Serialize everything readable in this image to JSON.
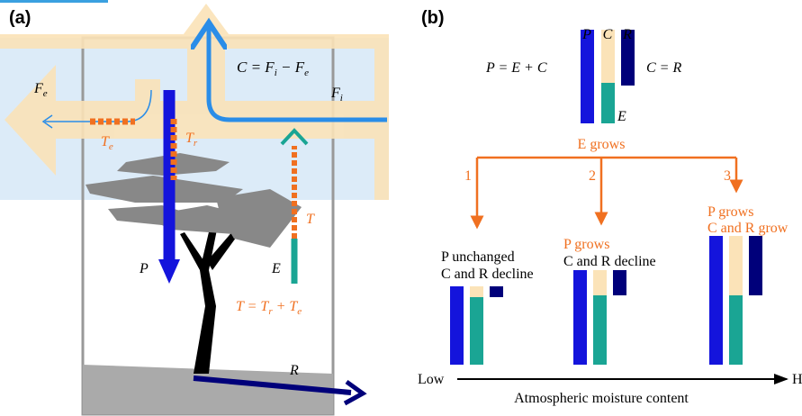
{
  "panel_a": {
    "label": "(a)",
    "fe": [
      "F",
      "e"
    ],
    "fi": [
      "F",
      "i"
    ],
    "c_formula": [
      "C = F",
      "i",
      " − F",
      "e"
    ],
    "te": [
      "T",
      "e"
    ],
    "tr": [
      "T",
      "r"
    ],
    "t": "T",
    "e": "E",
    "p": "P",
    "t_formula": [
      "T = T",
      "r",
      " + T",
      "e"
    ],
    "r": "R"
  },
  "panel_b": {
    "label": "(b)",
    "p_formula": "P = E + C",
    "bar_labels": [
      "P",
      "C",
      "R"
    ],
    "c_equals_r": "C = R",
    "e": "E",
    "e_grows": "E grows",
    "branches": [
      {
        "number": "1",
        "line1": "P unchanged",
        "line2": "C and R decline"
      },
      {
        "number": "2",
        "line1": "P grows",
        "line2": "C and R decline"
      },
      {
        "number": "3",
        "line1": "P grows",
        "line2": "C and R grow"
      }
    ],
    "axis_low": "Low",
    "axis_high": "High",
    "axis_title": "Atmospheric moisture content"
  }
}
